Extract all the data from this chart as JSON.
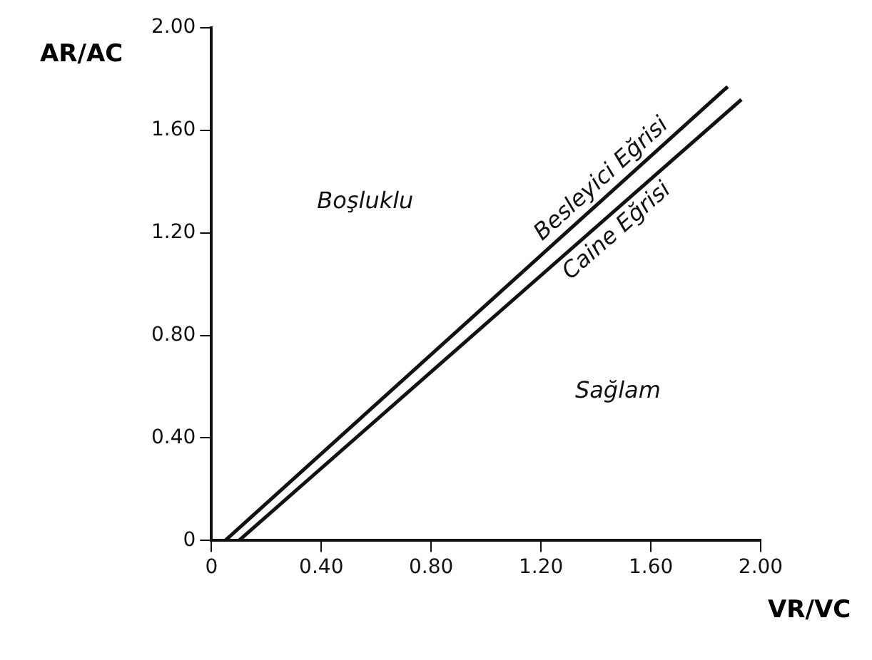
{
  "chart_data": {
    "type": "line",
    "xlabel": "VR/VC",
    "ylabel": "AR/AC",
    "series": [
      {
        "name": "Besleyici Eğrisi",
        "color": "#111111",
        "x": [
          0.05,
          1.88
        ],
        "values": [
          0,
          1.77
        ]
      },
      {
        "name": "Caine Eğrisi",
        "color": "#111111",
        "x": [
          0.1,
          1.93
        ],
        "values": [
          0,
          1.72
        ]
      }
    ],
    "annotations": [
      "Boşluklu",
      "Sağlam"
    ],
    "xlim": [
      0,
      2
    ],
    "ylim": [
      0,
      2
    ],
    "xticks": [
      0,
      {
        "value": 0.4,
        "label": "0.40"
      },
      {
        "value": 0.8,
        "label": "0.80"
      },
      {
        "value": 1.2,
        "label": "1.20"
      },
      {
        "value": 1.6,
        "label": "1.60"
      },
      {
        "value": 2,
        "label": "2.00"
      }
    ],
    "yticks": [
      0,
      {
        "value": 0.4,
        "label": "0.40"
      },
      {
        "value": 0.8,
        "label": "0.80"
      },
      {
        "value": 1.2,
        "label": "1.20"
      },
      {
        "value": 1.6,
        "label": "1.60"
      },
      {
        "value": 2,
        "label": "2.00"
      }
    ],
    "grid": false,
    "legend": false,
    "marker": "none",
    "line_style": "solid"
  }
}
